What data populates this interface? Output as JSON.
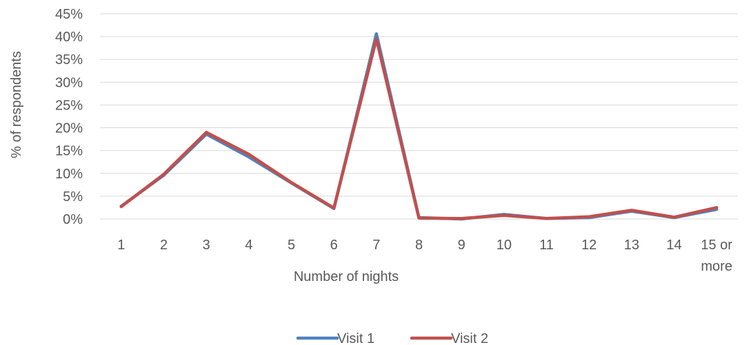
{
  "chart_data": {
    "type": "line",
    "title": "",
    "xlabel": "Number of nights",
    "ylabel": "% of respondents",
    "categories": [
      "1",
      "2",
      "3",
      "4",
      "5",
      "6",
      "7",
      "8",
      "9",
      "10",
      "11",
      "12",
      "13",
      "14",
      "15 or more"
    ],
    "category_lines": [
      [
        "1"
      ],
      [
        "2"
      ],
      [
        "3"
      ],
      [
        "4"
      ],
      [
        "5"
      ],
      [
        "6"
      ],
      [
        "7"
      ],
      [
        "8"
      ],
      [
        "9"
      ],
      [
        "10"
      ],
      [
        "11"
      ],
      [
        "12"
      ],
      [
        "13"
      ],
      [
        "14"
      ],
      [
        "15 or",
        "more"
      ]
    ],
    "ylim": [
      0,
      45
    ],
    "yticks": [
      0,
      5,
      10,
      15,
      20,
      25,
      30,
      35,
      40,
      45
    ],
    "ytick_labels": [
      "0%",
      "5%",
      "10%",
      "15%",
      "20%",
      "25%",
      "30%",
      "35%",
      "40%",
      "45%"
    ],
    "grid": true,
    "legend_position": "bottom",
    "series": [
      {
        "name": "Visit 1",
        "color": "#4f81bd",
        "values": [
          2.8,
          9.6,
          18.6,
          13.6,
          7.9,
          2.3,
          40.6,
          0.3,
          0.0,
          1.0,
          0.1,
          0.3,
          1.7,
          0.3,
          2.1
        ]
      },
      {
        "name": "Visit 2",
        "color": "#c0504d",
        "values": [
          2.7,
          9.8,
          19.0,
          14.2,
          8.0,
          2.4,
          39.5,
          0.2,
          0.1,
          0.8,
          0.1,
          0.5,
          1.9,
          0.4,
          2.5
        ]
      }
    ]
  }
}
